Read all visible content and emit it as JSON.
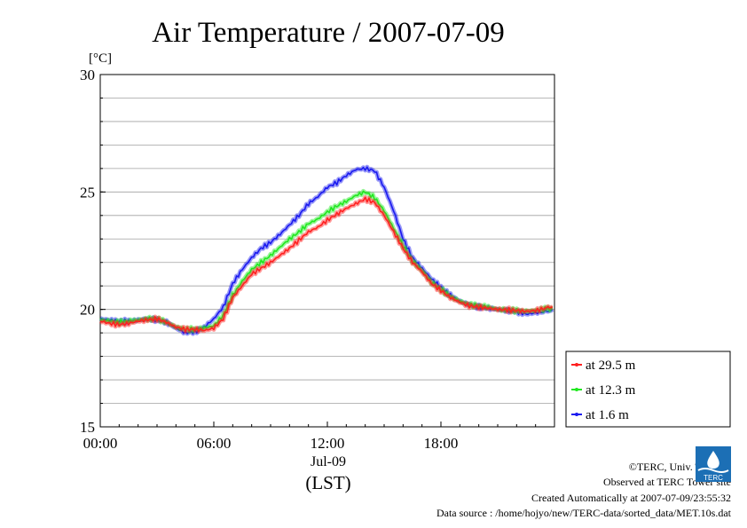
{
  "colors": {
    "series_29_5": "#ff2020",
    "series_12_3": "#20e820",
    "series_1_6": "#1a1af0",
    "grid": "#a0a0a0",
    "logo": "#1c6fb5"
  },
  "chart_data": {
    "type": "line",
    "title": "Air Temperature / 2007-07-09",
    "ylabel": "[°C]",
    "ylim": [
      15,
      30
    ],
    "yticks": [
      {
        "value": 15,
        "label": "15"
      },
      {
        "value": 20,
        "label": "20"
      },
      {
        "value": 25,
        "label": "25"
      },
      {
        "value": 30,
        "label": "30"
      }
    ],
    "xlim": [
      0,
      24
    ],
    "xticks": [
      {
        "value": 0,
        "label": "00:00"
      },
      {
        "value": 6,
        "label": "06:00"
      },
      {
        "value": 12,
        "label": "12:00"
      },
      {
        "value": 18,
        "label": "18:00"
      }
    ],
    "date_label": "Jul-09",
    "time_zone_label": "(LST)",
    "grid": true,
    "legend_position": "right-bottom",
    "series": [
      {
        "name": "at 29.5 m",
        "color_key": "series_29_5",
        "x": [
          0,
          0.5,
          1,
          1.5,
          2,
          2.5,
          3,
          3.5,
          4,
          4.5,
          5,
          5.5,
          6,
          6.5,
          7,
          7.5,
          8,
          8.5,
          9,
          9.5,
          10,
          10.5,
          11,
          11.5,
          12,
          12.5,
          13,
          13.5,
          14,
          14.5,
          15,
          15.5,
          16,
          16.5,
          17,
          17.5,
          18,
          18.5,
          19,
          19.5,
          20,
          20.5,
          21,
          21.5,
          22,
          22.5,
          23,
          23.5,
          23.9
        ],
        "y": [
          19.5,
          19.4,
          19.35,
          19.4,
          19.5,
          19.55,
          19.6,
          19.45,
          19.25,
          19.15,
          19.15,
          19.1,
          19.2,
          19.6,
          20.5,
          21.0,
          21.5,
          21.75,
          22.0,
          22.3,
          22.6,
          22.95,
          23.3,
          23.5,
          23.8,
          24.05,
          24.3,
          24.5,
          24.7,
          24.55,
          24.0,
          23.3,
          22.6,
          22.0,
          21.6,
          21.1,
          20.8,
          20.5,
          20.3,
          20.15,
          20.1,
          20.05,
          20.0,
          19.98,
          19.95,
          19.92,
          19.95,
          20.05,
          20.1
        ]
      },
      {
        "name": "at 12.3 m",
        "color_key": "series_12_3",
        "x": [
          0,
          0.5,
          1,
          1.5,
          2,
          2.5,
          3,
          3.5,
          4,
          4.5,
          5,
          5.5,
          6,
          6.5,
          7,
          7.5,
          8,
          8.5,
          9,
          9.5,
          10,
          10.5,
          11,
          11.5,
          12,
          12.5,
          13,
          13.5,
          14,
          14.5,
          15,
          15.5,
          16,
          16.5,
          17,
          17.5,
          18,
          18.5,
          19,
          19.5,
          20,
          20.5,
          21,
          21.5,
          22,
          22.5,
          23,
          23.5,
          23.9
        ],
        "y": [
          19.55,
          19.5,
          19.45,
          19.5,
          19.55,
          19.6,
          19.6,
          19.45,
          19.25,
          19.15,
          19.15,
          19.2,
          19.3,
          19.75,
          20.6,
          21.2,
          21.7,
          22.0,
          22.3,
          22.65,
          23.0,
          23.3,
          23.65,
          23.85,
          24.15,
          24.4,
          24.6,
          24.85,
          25.0,
          24.75,
          24.2,
          23.45,
          22.7,
          22.05,
          21.65,
          21.15,
          20.85,
          20.55,
          20.35,
          20.2,
          20.15,
          20.1,
          20.0,
          19.98,
          19.95,
          19.92,
          19.95,
          20.02,
          20.05
        ]
      },
      {
        "name": "at 1.6 m",
        "color_key": "series_1_6",
        "x": [
          0,
          0.5,
          1,
          1.5,
          2,
          2.5,
          3,
          3.5,
          4,
          4.5,
          5,
          5.5,
          6,
          6.5,
          7,
          7.5,
          8,
          8.5,
          9,
          9.5,
          10,
          10.5,
          11,
          11.5,
          12,
          12.5,
          13,
          13.5,
          14,
          14.5,
          15,
          15.5,
          16,
          16.5,
          17,
          17.5,
          18,
          18.5,
          19,
          19.5,
          20,
          20.5,
          21,
          21.5,
          22,
          22.5,
          23,
          23.5,
          23.9
        ],
        "y": [
          19.6,
          19.55,
          19.5,
          19.5,
          19.55,
          19.6,
          19.55,
          19.45,
          19.2,
          19.0,
          19.05,
          19.25,
          19.6,
          20.1,
          21.1,
          21.7,
          22.2,
          22.6,
          22.85,
          23.2,
          23.6,
          24.0,
          24.5,
          24.8,
          25.2,
          25.4,
          25.7,
          25.95,
          26.0,
          25.9,
          25.2,
          24.2,
          23.0,
          22.2,
          21.75,
          21.3,
          20.95,
          20.6,
          20.35,
          20.2,
          20.1,
          20.05,
          20.0,
          19.95,
          19.9,
          19.8,
          19.85,
          19.9,
          20.0
        ]
      }
    ]
  },
  "footer": {
    "copyright": "©TERC, Univ. Tsukuba",
    "observed": "Observed at TERC Tower site",
    "created": "Created Automatically at 2007-07-09/23:55:32",
    "source": "Data source : /home/hojyo/new/TERC-data/sorted_data/MET.10s.dat",
    "logo_text": "TERC"
  }
}
